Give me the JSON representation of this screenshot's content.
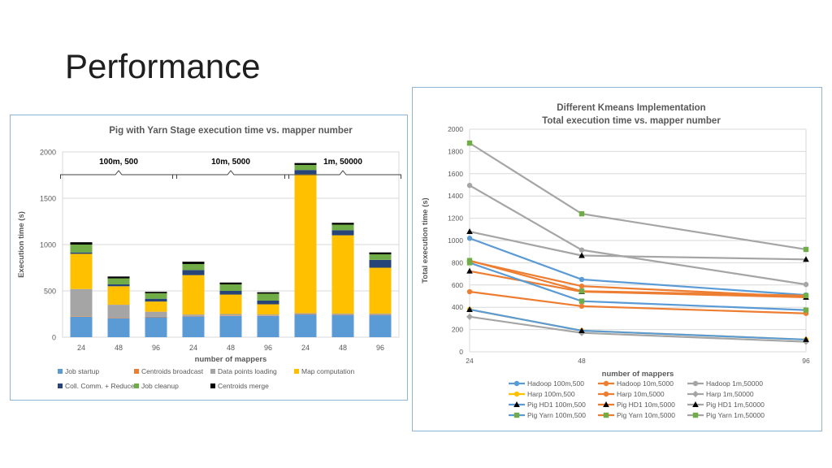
{
  "slide": {
    "title": "Performance"
  },
  "chart_data": [
    {
      "type": "bar",
      "stacked": true,
      "title": "Pig with Yarn Stage execution time vs. mapper number",
      "xlabel": "number of mappers",
      "ylabel": "Execution time  (s)",
      "ylim": [
        0,
        2000
      ],
      "yticks": [
        0,
        500,
        1000,
        1500,
        2000
      ],
      "categories": [
        "24",
        "48",
        "96",
        "24",
        "48",
        "96",
        "24",
        "48",
        "96"
      ],
      "groups": [
        {
          "label": "100m, 500",
          "from": 0,
          "to": 2
        },
        {
          "label": "10m, 5000",
          "from": 3,
          "to": 5
        },
        {
          "label": "1m, 50000",
          "from": 6,
          "to": 8
        }
      ],
      "legend_position": "bottom",
      "series": [
        {
          "name": "Job startup",
          "color": "#5b9bd5",
          "values": [
            220,
            205,
            215,
            225,
            230,
            230,
            245,
            240,
            240
          ]
        },
        {
          "name": "Centroids broadcast",
          "color": "#ed7d31",
          "values": [
            5,
            5,
            5,
            5,
            5,
            5,
            5,
            5,
            5
          ]
        },
        {
          "name": "Data points loading",
          "color": "#a5a5a5",
          "values": [
            295,
            140,
            55,
            15,
            15,
            10,
            10,
            10,
            10
          ]
        },
        {
          "name": "Map computation",
          "color": "#ffc000",
          "values": [
            380,
            200,
            110,
            425,
            210,
            110,
            1500,
            845,
            495
          ]
        },
        {
          "name": "Coll. Comm. + Reduce",
          "color": "#264478",
          "values": [
            15,
            20,
            30,
            55,
            40,
            40,
            45,
            55,
            85
          ]
        },
        {
          "name": "Job cleanup",
          "color": "#70ad47",
          "values": [
            85,
            65,
            60,
            65,
            70,
            75,
            55,
            60,
            60
          ]
        },
        {
          "name": "Centroids merge",
          "color": "#000000",
          "values": [
            25,
            20,
            15,
            25,
            20,
            15,
            20,
            20,
            20
          ]
        }
      ]
    },
    {
      "type": "line",
      "title": "Different Kmeans Implementation",
      "subtitle": "Total execution time vs. mapper number",
      "xlabel": "number of mappers",
      "ylabel": "Total execution time  (s)",
      "x": [
        24,
        48,
        96
      ],
      "xlim": [
        24,
        96
      ],
      "ylim": [
        0,
        2000
      ],
      "yticks": [
        0,
        200,
        400,
        600,
        800,
        1000,
        1200,
        1400,
        1600,
        1800,
        2000
      ],
      "legend_position": "bottom",
      "series": [
        {
          "name": "Hadoop 100m,500",
          "color": "#5b9bd5",
          "marker": "circle",
          "values": [
            1020,
            650,
            510
          ]
        },
        {
          "name": "Hadoop 10m,5000",
          "color": "#ed7d31",
          "marker": "circle",
          "values": [
            540,
            410,
            345
          ]
        },
        {
          "name": "Hadoop 1m,50000",
          "color": "#a5a5a5",
          "marker": "circle",
          "values": [
            1495,
            915,
            605
          ]
        },
        {
          "name": "Harp 100m,500",
          "color": "#ffc000",
          "marker": "circle",
          "values": [
            380,
            190,
            110
          ]
        },
        {
          "name": "Harp 10m,5000",
          "color": "#ed7d31",
          "marker": "circle",
          "values": [
            815,
            590,
            495
          ]
        },
        {
          "name": "Harp 1m,50000",
          "color": "#a5a5a5",
          "marker": "diamond",
          "values": [
            315,
            170,
            90
          ]
        },
        {
          "name": "Pig HD1 100m,500",
          "color": "#5b9bd5",
          "marker": "triangle",
          "values": [
            380,
            190,
            110
          ]
        },
        {
          "name": "Pig HD1 10m,5000",
          "color": "#ed7d31",
          "marker": "triangle",
          "values": [
            725,
            540,
            490
          ]
        },
        {
          "name": "Pig HD1 1m,50000",
          "color": "#a5a5a5",
          "marker": "triangle",
          "values": [
            1080,
            865,
            830
          ]
        },
        {
          "name": "Pig Yarn 100m,500",
          "color": "#5b9bd5",
          "marker": "square",
          "values": [
            800,
            455,
            375
          ]
        },
        {
          "name": "Pig Yarn 10m,5000",
          "color": "#ed7d31",
          "marker": "square",
          "values": [
            820,
            545,
            505
          ]
        },
        {
          "name": "Pig Yarn 1m,50000",
          "color": "#a5a5a5",
          "marker": "square",
          "values": [
            1875,
            1240,
            920
          ]
        }
      ]
    }
  ]
}
